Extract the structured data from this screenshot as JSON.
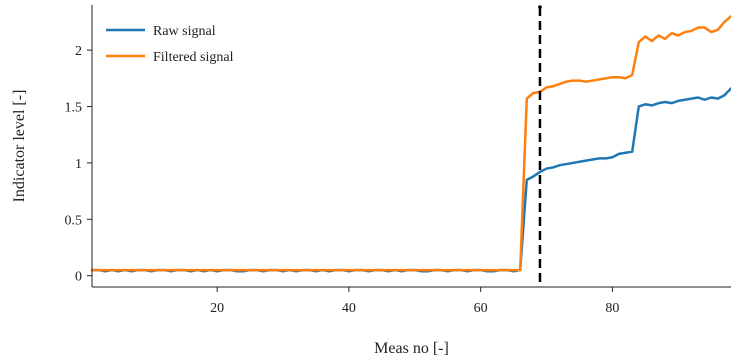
{
  "chart_data": {
    "type": "line",
    "title": "",
    "xlabel": "Meas no [-]",
    "ylabel": "Indicator level [-]",
    "xlim": [
      1,
      98
    ],
    "ylim": [
      -0.1,
      2.4
    ],
    "xticks": [
      20,
      40,
      60,
      80
    ],
    "yticks": [
      0,
      0.5,
      1,
      1.5,
      2
    ],
    "ytick_labels": [
      "0",
      "0.5",
      "1",
      "1.5",
      "2"
    ],
    "grid": false,
    "legend_position": "top-left",
    "vline": {
      "x": 69,
      "style": "dashed",
      "color": "#000000"
    },
    "series": [
      {
        "name": "Raw signal",
        "color": "#1f77b4",
        "x": [
          1,
          2,
          3,
          4,
          5,
          6,
          7,
          8,
          9,
          10,
          11,
          12,
          13,
          14,
          15,
          16,
          17,
          18,
          19,
          20,
          21,
          22,
          23,
          24,
          25,
          26,
          27,
          28,
          29,
          30,
          31,
          32,
          33,
          34,
          35,
          36,
          37,
          38,
          39,
          40,
          41,
          42,
          43,
          44,
          45,
          46,
          47,
          48,
          49,
          50,
          51,
          52,
          53,
          54,
          55,
          56,
          57,
          58,
          59,
          60,
          61,
          62,
          63,
          64,
          65,
          66,
          67,
          68,
          69,
          70,
          71,
          72,
          73,
          74,
          75,
          76,
          77,
          78,
          79,
          80,
          81,
          82,
          83,
          84,
          85,
          86,
          87,
          88,
          89,
          90,
          91,
          92,
          93,
          94,
          95,
          96,
          97,
          98
        ],
        "values": [
          0.05,
          0.05,
          0.04,
          0.05,
          0.04,
          0.05,
          0.04,
          0.05,
          0.05,
          0.04,
          0.05,
          0.05,
          0.04,
          0.05,
          0.05,
          0.04,
          0.05,
          0.04,
          0.05,
          0.04,
          0.05,
          0.05,
          0.04,
          0.04,
          0.05,
          0.05,
          0.04,
          0.05,
          0.05,
          0.04,
          0.05,
          0.04,
          0.05,
          0.05,
          0.04,
          0.05,
          0.04,
          0.05,
          0.05,
          0.04,
          0.05,
          0.05,
          0.04,
          0.05,
          0.05,
          0.04,
          0.05,
          0.04,
          0.05,
          0.05,
          0.04,
          0.04,
          0.05,
          0.05,
          0.04,
          0.05,
          0.05,
          0.04,
          0.05,
          0.05,
          0.04,
          0.04,
          0.05,
          0.05,
          0.04,
          0.05,
          0.85,
          0.88,
          0.92,
          0.95,
          0.96,
          0.98,
          0.99,
          1.0,
          1.01,
          1.02,
          1.03,
          1.04,
          1.04,
          1.05,
          1.08,
          1.09,
          1.1,
          1.5,
          1.52,
          1.51,
          1.53,
          1.54,
          1.53,
          1.55,
          1.56,
          1.57,
          1.58,
          1.56,
          1.58,
          1.57,
          1.6,
          1.66
        ]
      },
      {
        "name": "Filtered signal",
        "color": "#ff7f0e",
        "x": [
          1,
          2,
          3,
          4,
          5,
          6,
          7,
          8,
          9,
          10,
          11,
          12,
          13,
          14,
          15,
          16,
          17,
          18,
          19,
          20,
          21,
          22,
          23,
          24,
          25,
          26,
          27,
          28,
          29,
          30,
          31,
          32,
          33,
          34,
          35,
          36,
          37,
          38,
          39,
          40,
          41,
          42,
          43,
          44,
          45,
          46,
          47,
          48,
          49,
          50,
          51,
          52,
          53,
          54,
          55,
          56,
          57,
          58,
          59,
          60,
          61,
          62,
          63,
          64,
          65,
          66,
          67,
          68,
          69,
          70,
          71,
          72,
          73,
          74,
          75,
          76,
          77,
          78,
          79,
          80,
          81,
          82,
          83,
          84,
          85,
          86,
          87,
          88,
          89,
          90,
          91,
          92,
          93,
          94,
          95,
          96,
          97,
          98
        ],
        "values": [
          0.05,
          0.05,
          0.05,
          0.05,
          0.05,
          0.05,
          0.05,
          0.05,
          0.05,
          0.05,
          0.05,
          0.05,
          0.05,
          0.05,
          0.05,
          0.05,
          0.05,
          0.05,
          0.05,
          0.05,
          0.05,
          0.05,
          0.05,
          0.05,
          0.05,
          0.05,
          0.05,
          0.05,
          0.05,
          0.05,
          0.05,
          0.05,
          0.05,
          0.05,
          0.05,
          0.05,
          0.05,
          0.05,
          0.05,
          0.05,
          0.05,
          0.05,
          0.05,
          0.05,
          0.05,
          0.05,
          0.05,
          0.05,
          0.05,
          0.05,
          0.05,
          0.05,
          0.05,
          0.05,
          0.05,
          0.05,
          0.05,
          0.05,
          0.05,
          0.05,
          0.05,
          0.05,
          0.05,
          0.05,
          0.05,
          0.05,
          1.57,
          1.62,
          1.63,
          1.67,
          1.68,
          1.7,
          1.72,
          1.73,
          1.73,
          1.72,
          1.73,
          1.74,
          1.75,
          1.76,
          1.76,
          1.75,
          1.78,
          2.07,
          2.12,
          2.08,
          2.13,
          2.1,
          2.15,
          2.13,
          2.16,
          2.17,
          2.2,
          2.2,
          2.16,
          2.18,
          2.25,
          2.3
        ]
      }
    ]
  }
}
